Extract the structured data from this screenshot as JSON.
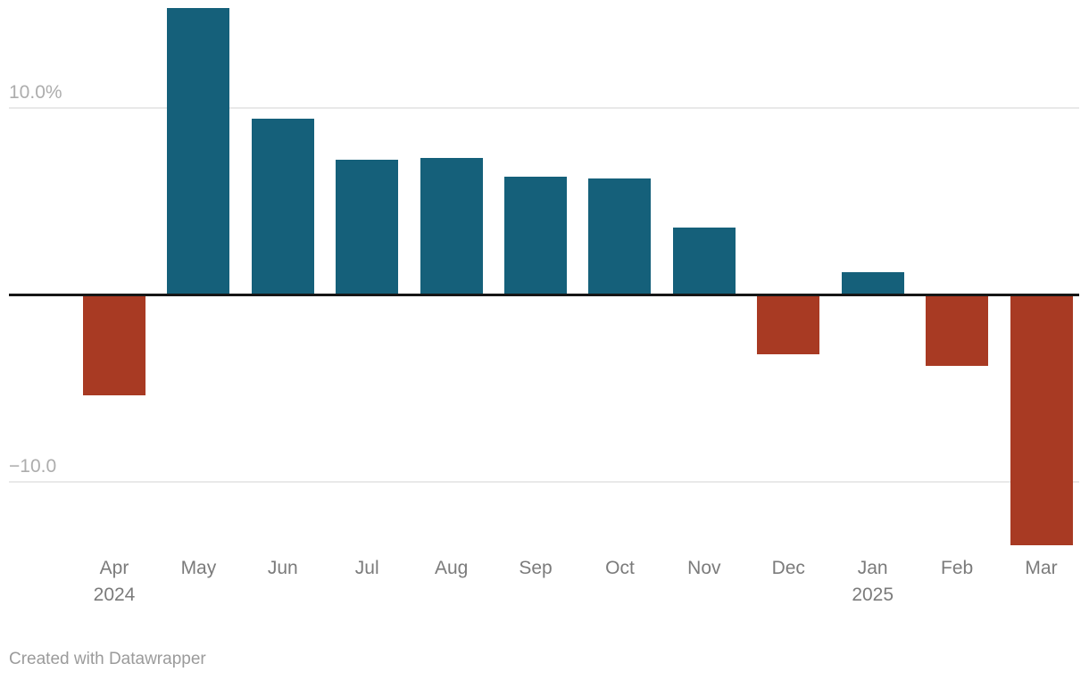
{
  "chart_data": {
    "type": "bar",
    "title": "",
    "categories": [
      "Apr 2024",
      "May",
      "Jun",
      "Jul",
      "Aug",
      "Sep",
      "Oct",
      "Nov",
      "Dec",
      "Jan 2025",
      "Feb",
      "Mar"
    ],
    "x_tick_lines": [
      [
        "Apr",
        "2024"
      ],
      [
        "May"
      ],
      [
        "Jun"
      ],
      [
        "Jul"
      ],
      [
        "Aug"
      ],
      [
        "Sep"
      ],
      [
        "Oct"
      ],
      [
        "Nov"
      ],
      [
        "Dec"
      ],
      [
        "Jan",
        "2025"
      ],
      [
        "Feb"
      ],
      [
        "Mar"
      ]
    ],
    "values": [
      -5.4,
      15.3,
      9.4,
      7.2,
      7.3,
      6.3,
      6.2,
      3.6,
      -3.2,
      1.2,
      -3.8,
      -13.4
    ],
    "unit": "%",
    "xlabel": "",
    "ylabel": "",
    "y_axis": {
      "ticks": [
        {
          "label": "10.0%",
          "value": 10
        },
        {
          "label": "−10.0",
          "value": -10
        }
      ]
    },
    "baseline": 0,
    "ylim": [
      -14,
      15.8
    ],
    "grid": "horizontal",
    "legend": "none",
    "colors": {
      "positive": "#15607a",
      "negative": "#a83a23",
      "gridline": "#e9e9e9",
      "zero_line": "#161616",
      "y_tick_text": "#adadad",
      "x_tick_text": "#7b7b7b",
      "footer_text": "#9b9b9b"
    }
  },
  "footer": {
    "credit": "Created with Datawrapper"
  }
}
